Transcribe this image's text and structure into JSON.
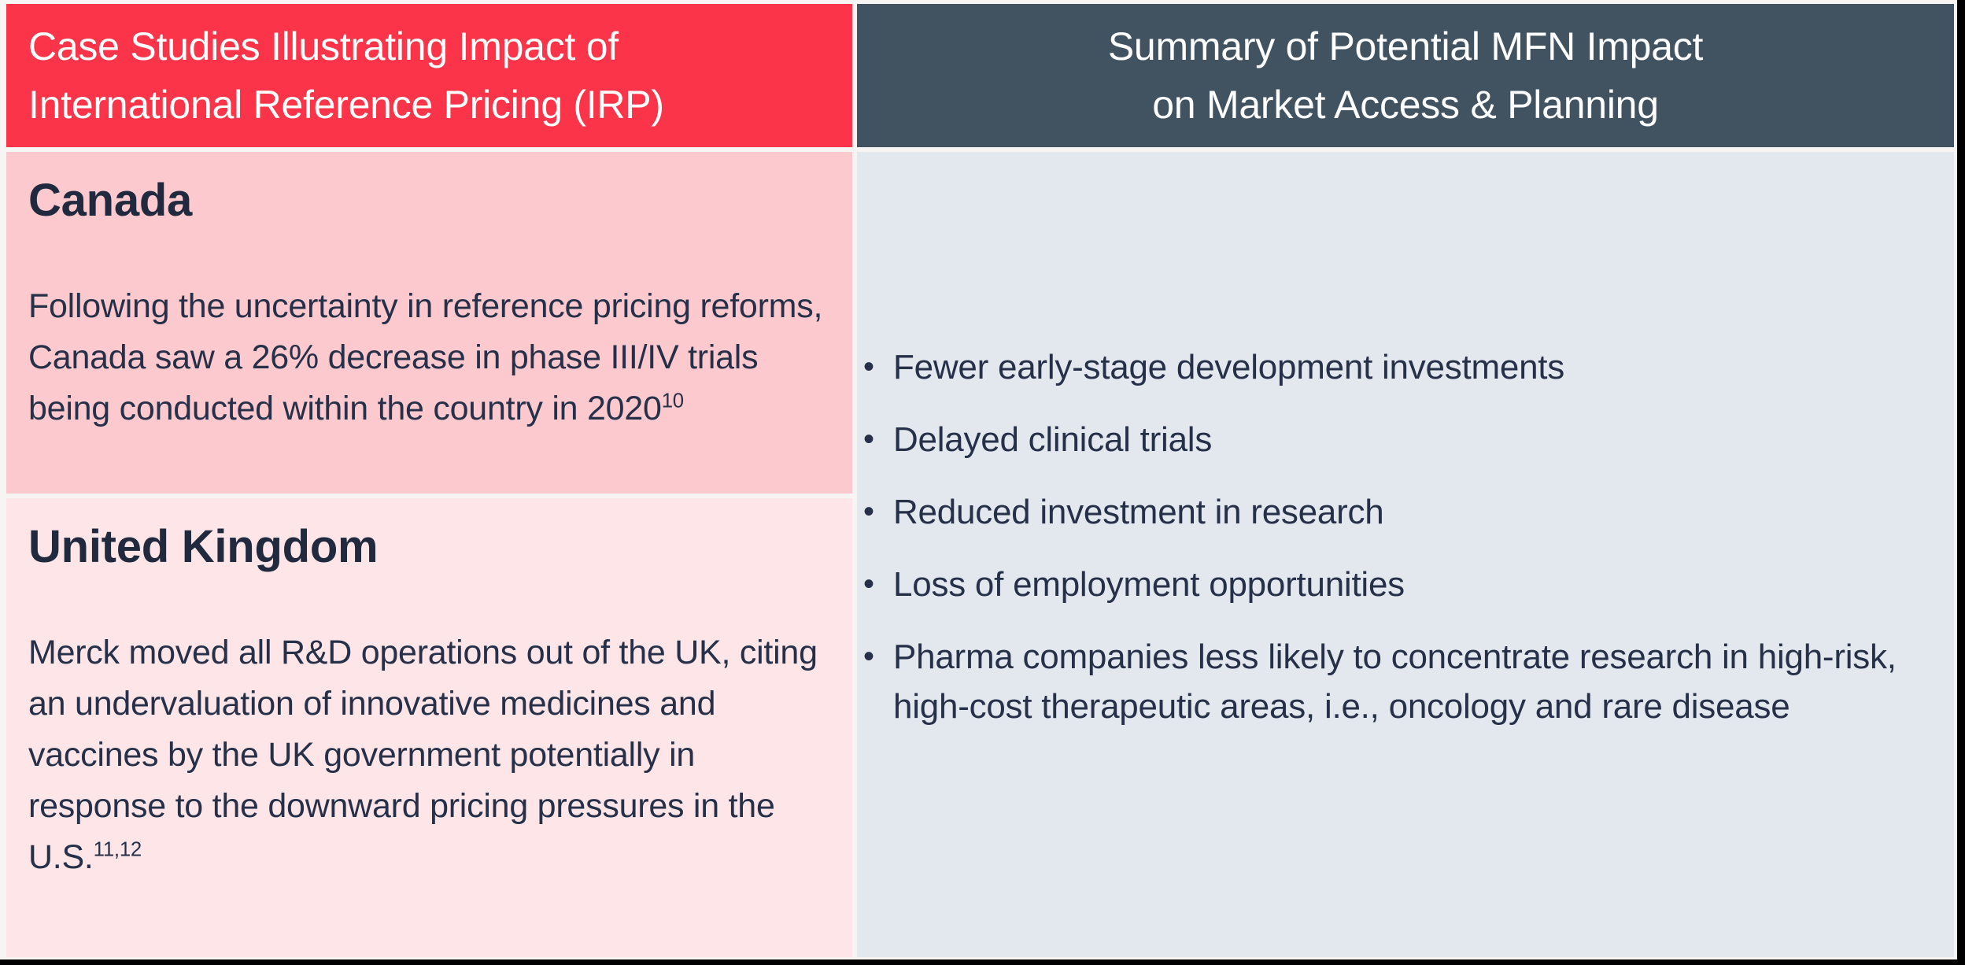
{
  "colors": {
    "red": "#FB3449",
    "slate": "#415260",
    "canada_bg": "#FCC9CE",
    "uk_bg": "#FDE5E8",
    "summary_bg": "#E3E8EF",
    "page_bg": "#F7F4F4",
    "header_text": "#FFFFFF",
    "heading_text": "#20293E",
    "body_text": "#263049"
  },
  "bullet_glyph": "•",
  "left_column": {
    "header": {
      "line1": "Case Studies Illustrating Impact of",
      "line2": "International Reference Pricing (IRP)"
    },
    "case_studies": [
      {
        "country": "Canada",
        "text": "Following the uncertainty in reference pricing reforms, Canada saw a 26% decrease in phase III/IV trials being conducted within the country in 2020",
        "citation": "10"
      },
      {
        "country": "United Kingdom",
        "text": "Merck moved all R&D operations out of the UK, citing an undervaluation of innovative medicines and vaccines by the UK government potentially in response to the downward pricing pressures in the U.S.",
        "citation": "11,12"
      }
    ]
  },
  "right_column": {
    "header": {
      "line1": "Summary of Potential MFN Impact",
      "line2": "on Market Access & Planning"
    },
    "bullets": [
      "Fewer early-stage development investments",
      "Delayed clinical trials",
      "Reduced investment in research",
      "Loss of employment opportunities",
      "Pharma companies less likely to concentrate research in high-risk, high-cost therapeutic areas, i.e., oncology and rare disease"
    ]
  }
}
